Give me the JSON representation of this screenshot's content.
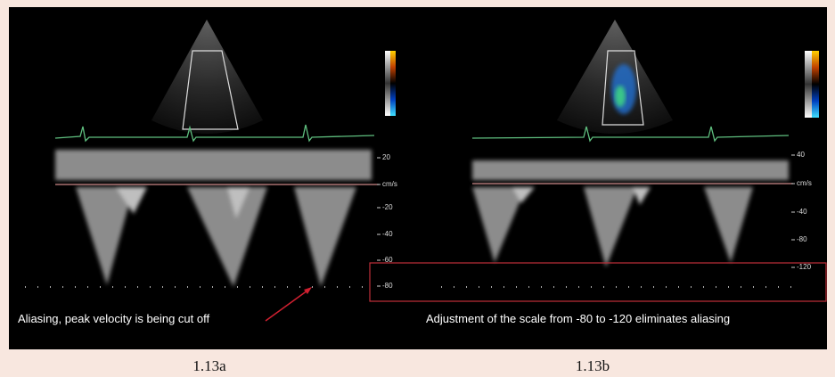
{
  "panels": [
    {
      "scale_labels": [
        "20",
        "cm/s",
        "-20",
        "-40",
        "-60",
        "-80"
      ],
      "annotation": "Aliasing, peak velocity is being cut off",
      "caption": "1.13a"
    },
    {
      "scale_labels": [
        "40",
        "cm/s",
        "-40",
        "-80",
        "-120"
      ],
      "annotation": "Adjustment of the scale from -80 to -120 eliminates aliasing",
      "caption": "1.13b"
    }
  ]
}
